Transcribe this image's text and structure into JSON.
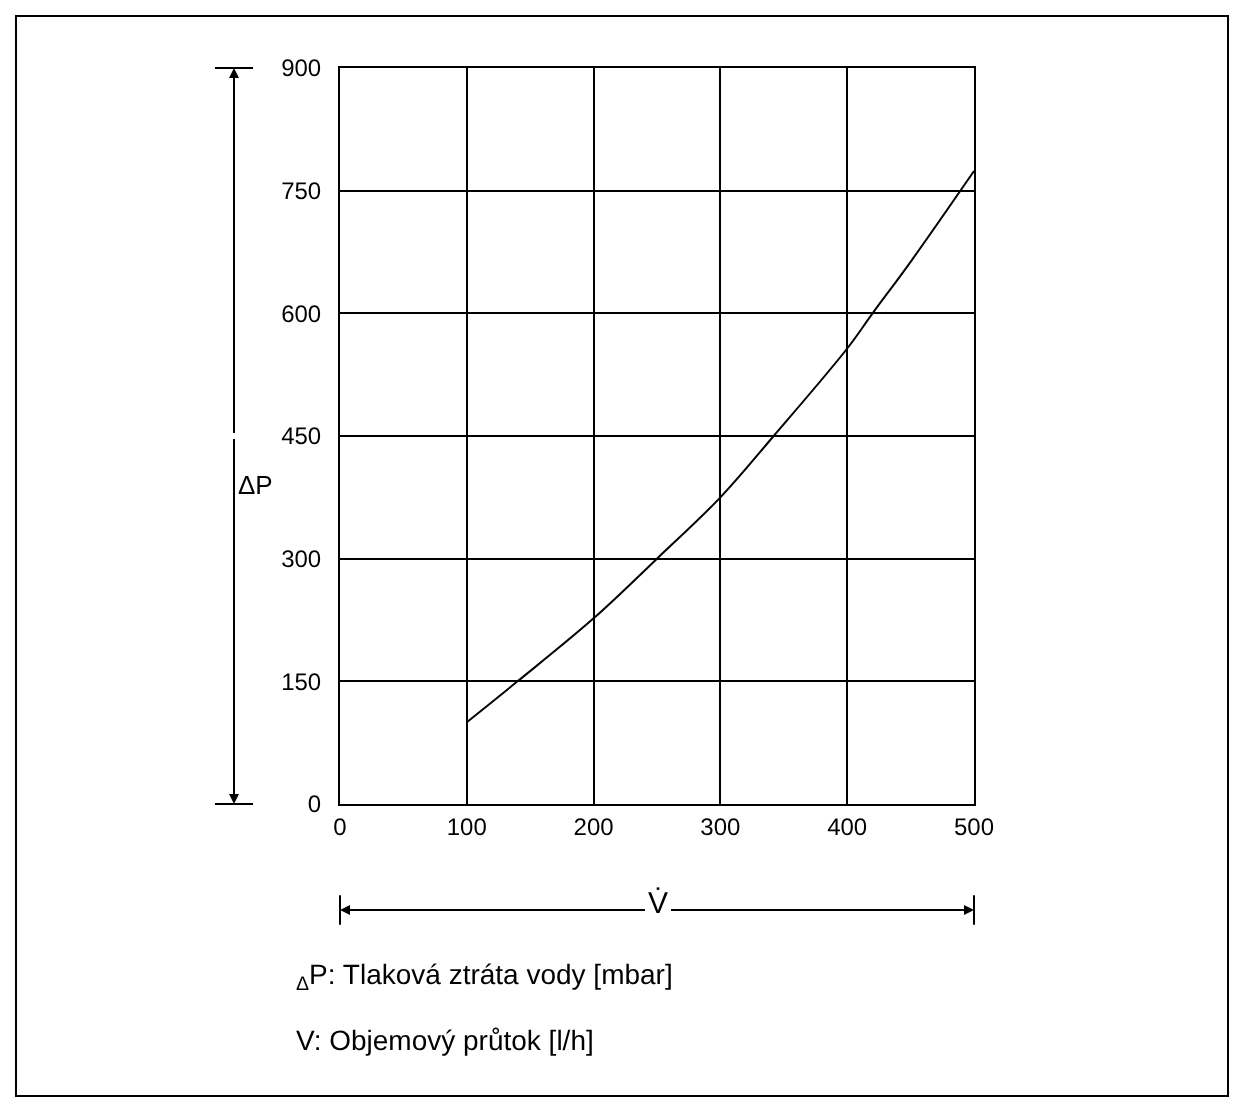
{
  "chart_data": {
    "type": "line",
    "xlabel": "V̇",
    "ylabel": "ΔP",
    "x": [
      100,
      140,
      200,
      250,
      300,
      342,
      400,
      420,
      450,
      500
    ],
    "series": [
      {
        "color": "#000000",
        "values": [
          100,
          150,
          227,
          300,
          375,
          450,
          557,
          600,
          663,
          774
        ]
      }
    ],
    "xlim": [
      0,
      500
    ],
    "xticks": [
      0,
      100,
      200,
      300,
      400,
      500
    ],
    "ylim": [
      0,
      900
    ],
    "yticks": [
      0,
      150,
      300,
      450,
      600,
      750,
      900
    ],
    "grid": true,
    "marker": "none",
    "line_style": "solid",
    "annotations": [
      "$_{Δ}$P: Tlaková ztráta vody [mbar]",
      "V: Objemový průtok [l/h]"
    ]
  }
}
